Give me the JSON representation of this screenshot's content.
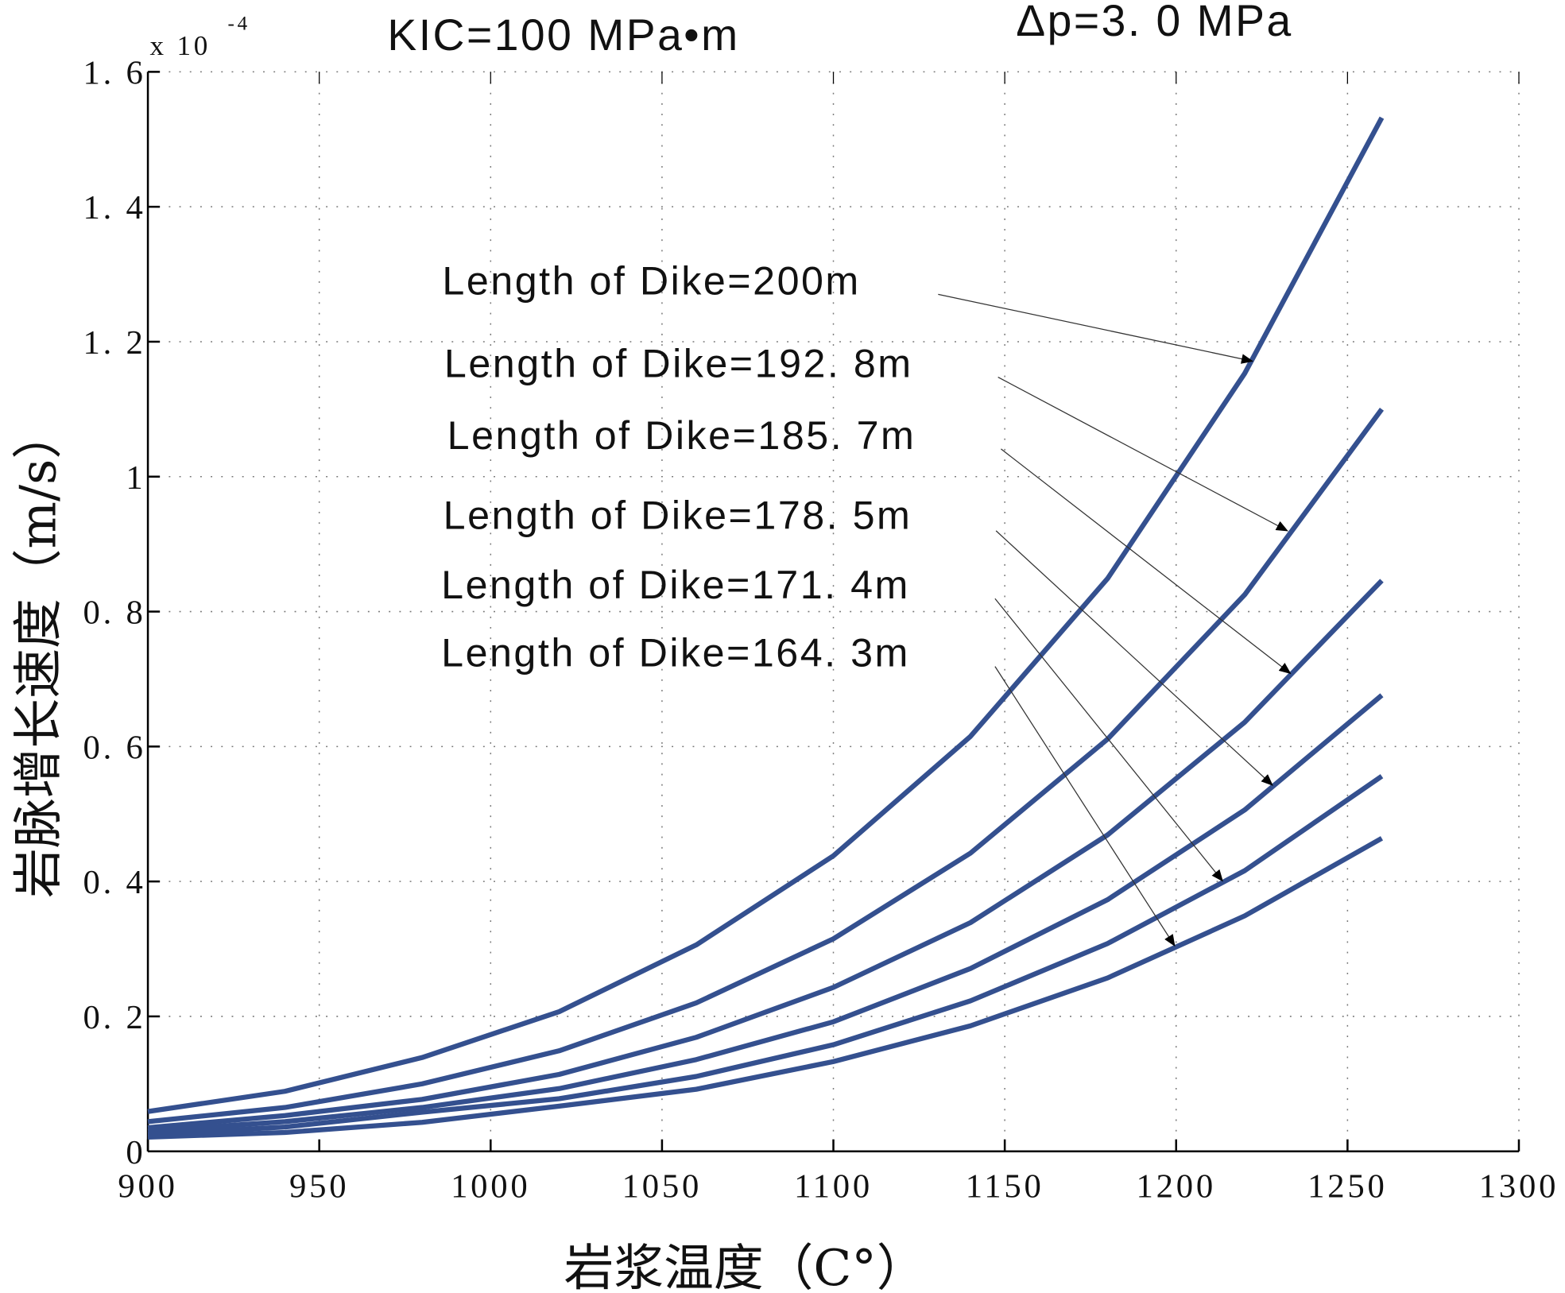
{
  "chart_data": {
    "type": "line",
    "title_left": "KIC=100  MPa•m",
    "title_right": "Δp=3. 0 MPa",
    "xlabel": "岩浆温度（C°）",
    "ylabel": "岩脉增长速度（m/s）",
    "y_multiplier": "x 10",
    "y_multiplier_exp": "-4",
    "xlim": [
      900,
      1300
    ],
    "ylim": [
      0,
      1.6
    ],
    "grid": true,
    "xticks": [
      "900",
      "950",
      "1000",
      "1050",
      "1100",
      "1150",
      "1200",
      "1250",
      "1300"
    ],
    "yticks": [
      "0",
      "0. 2",
      "0. 4",
      "0. 6",
      "0. 8",
      "1",
      "1. 2",
      "1. 4",
      "1. 6"
    ],
    "x": [
      900,
      940,
      980,
      1020,
      1060,
      1100,
      1140,
      1180,
      1220,
      1260
    ],
    "series": [
      {
        "name": "Length of Dike=200m",
        "values": [
          0.059,
          0.089,
          0.139,
          0.207,
          0.306,
          0.438,
          0.615,
          0.849,
          1.153,
          1.532
        ]
      },
      {
        "name": "Length of Dike=192. 8m",
        "values": [
          0.044,
          0.065,
          0.1,
          0.149,
          0.22,
          0.315,
          0.442,
          0.611,
          0.825,
          1.1
        ]
      },
      {
        "name": "Length of Dike=185. 7m",
        "values": [
          0.035,
          0.053,
          0.077,
          0.114,
          0.169,
          0.243,
          0.339,
          0.469,
          0.636,
          0.846
        ]
      },
      {
        "name": "Length of Dike=178. 5m",
        "values": [
          0.03,
          0.044,
          0.065,
          0.093,
          0.136,
          0.192,
          0.271,
          0.373,
          0.506,
          0.676
        ]
      },
      {
        "name": "Length of Dike=171. 4m",
        "values": [
          0.025,
          0.036,
          0.058,
          0.078,
          0.111,
          0.158,
          0.223,
          0.308,
          0.416,
          0.556
        ]
      },
      {
        "name": "Length of Dike=164. 3m",
        "values": [
          0.021,
          0.028,
          0.043,
          0.067,
          0.092,
          0.133,
          0.186,
          0.257,
          0.349,
          0.464
        ]
      }
    ],
    "line_color": "#34508f",
    "legend_placement": "annotations with arrows"
  }
}
